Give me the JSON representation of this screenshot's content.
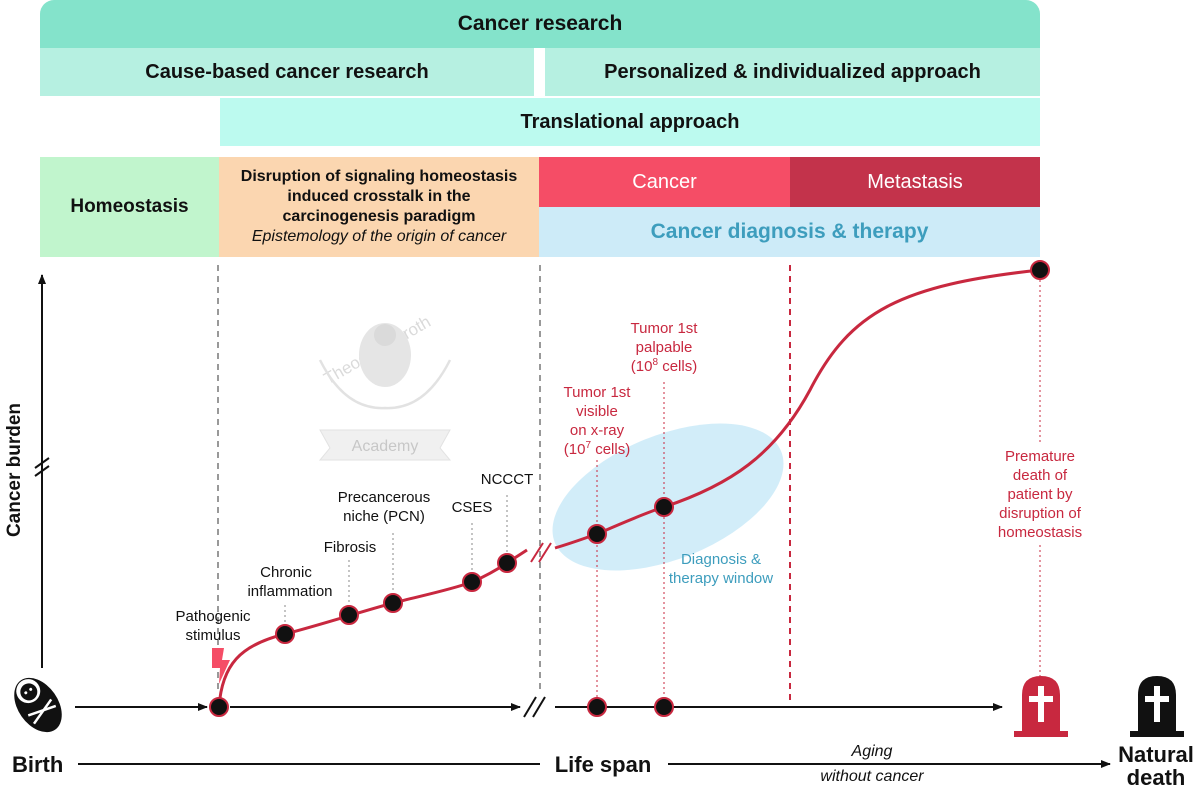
{
  "header": {
    "cancer_research": "Cancer research",
    "cause_based": "Cause-based cancer research",
    "personalized": "Personalized & individualized approach",
    "translational": "Translational approach"
  },
  "phases": {
    "homeostasis": "Homeostasis",
    "disruption_line1": "Disruption of signaling homeostasis",
    "disruption_line2": "induced crosstalk in the",
    "disruption_line3": "carcinogenesis paradigm",
    "disruption_italic": "Epistemology of the origin of cancer",
    "cancer": "Cancer",
    "metastasis": "Metastasis",
    "diagnosis_therapy": "Cancer diagnosis & therapy"
  },
  "axis": {
    "y_label": "Cancer burden",
    "birth": "Birth",
    "life_span": "Life span",
    "aging_line1": "Aging",
    "aging_line2": "without cancer",
    "natural_death_line1": "Natural",
    "natural_death_line2": "death"
  },
  "stages": {
    "pathogenic_line1": "Pathogenic",
    "pathogenic_line2": "stimulus",
    "chronic_line1": "Chronic",
    "chronic_line2": "inflammation",
    "fibrosis": "Fibrosis",
    "pcn_line1": "Precancerous",
    "pcn_line2": "niche (PCN)",
    "cses": "CSES",
    "ncccct": "NCCCT"
  },
  "tumor": {
    "visible_line1": "Tumor 1st",
    "visible_line2": "visible",
    "visible_line3": "on x-ray",
    "visible_line4_pre": "(10",
    "visible_line4_sup": "7",
    "visible_line4_post": " cells)",
    "palpable_line1": "Tumor 1st",
    "palpable_line2": "palpable",
    "palpable_line3_pre": "(10",
    "palpable_line3_sup": "8",
    "palpable_line3_post": " cells)"
  },
  "window": {
    "line1": "Diagnosis &",
    "line2": "therapy window"
  },
  "premature": {
    "line1": "Premature",
    "line2": "death of",
    "line3": "patient by",
    "line4": "disruption of",
    "line5": "homeostasis"
  },
  "watermark": {
    "name": "Theodor Billroth",
    "academy": "Academy"
  },
  "colors": {
    "curve": "#c8283f",
    "accent_red": "#f54d66",
    "teal_text": "#3d9dbd",
    "window_fill": "#cdebf8"
  },
  "icons": [
    "baby-icon",
    "lightning-icon",
    "tombstone-icon"
  ]
}
